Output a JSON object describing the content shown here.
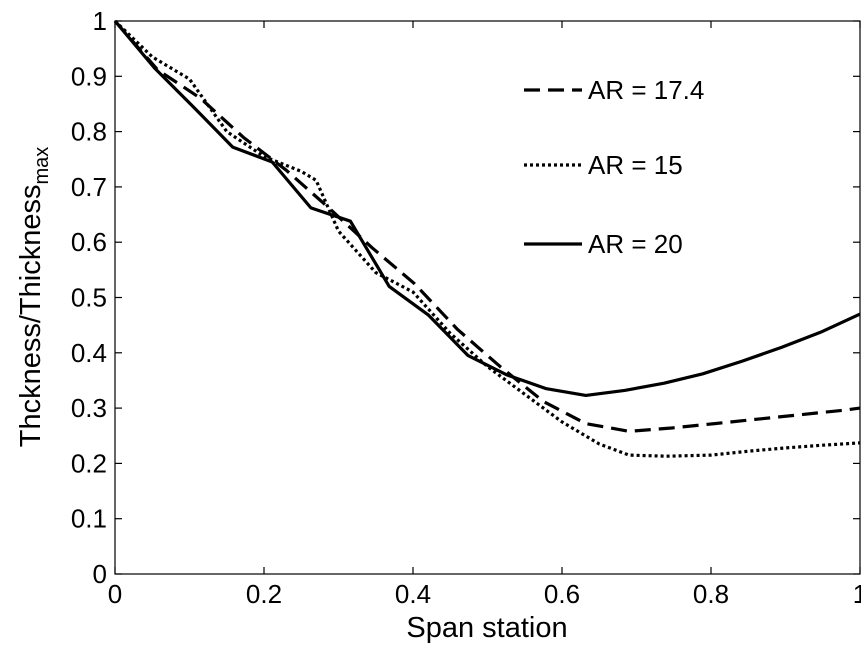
{
  "chart_data": {
    "type": "line",
    "title": "",
    "xlabel": "Span station",
    "ylabel": "Thckness/Thickness",
    "ylabel_subscript": "max",
    "xlim": [
      0,
      1
    ],
    "ylim": [
      0,
      1
    ],
    "xticks": [
      0,
      0.2,
      0.4,
      0.6,
      0.8,
      1
    ],
    "xtick_labels": [
      "0",
      "0.2",
      "0.4",
      "0.6",
      "0.8",
      "1"
    ],
    "yticks": [
      0,
      0.1,
      0.2,
      0.3,
      0.4,
      0.5,
      0.6,
      0.7,
      0.8,
      0.9,
      1
    ],
    "ytick_labels": [
      "0",
      "0.1",
      "0.2",
      "0.3",
      "0.4",
      "0.5",
      "0.6",
      "0.7",
      "0.8",
      "0.9",
      "1"
    ],
    "grid": false,
    "legend_position": "top-right",
    "series": [
      {
        "name": "AR = 17.4",
        "line_style": "dashed",
        "color": "#000000",
        "x": [
          0,
          0.057,
          0.115,
          0.172,
          0.23,
          0.287,
          0.345,
          0.402,
          0.46,
          0.517,
          0.575,
          0.632,
          0.69,
          0.747,
          0.805,
          0.862,
          0.92,
          0.977,
          1.0
        ],
        "y": [
          1.0,
          0.912,
          0.86,
          0.79,
          0.73,
          0.662,
          0.59,
          0.525,
          0.442,
          0.375,
          0.312,
          0.272,
          0.258,
          0.264,
          0.272,
          0.28,
          0.288,
          0.296,
          0.3
        ]
      },
      {
        "name": "AR = 15",
        "line_style": "dotted",
        "color": "#000000",
        "x": [
          0,
          0.05,
          0.1,
          0.15,
          0.2,
          0.25,
          0.27,
          0.3,
          0.35,
          0.4,
          0.45,
          0.5,
          0.55,
          0.6,
          0.65,
          0.69,
          0.74,
          0.8,
          0.85,
          0.9,
          0.95,
          1.0
        ],
        "y": [
          1.0,
          0.935,
          0.895,
          0.8,
          0.755,
          0.728,
          0.712,
          0.62,
          0.545,
          0.51,
          0.435,
          0.375,
          0.325,
          0.275,
          0.235,
          0.215,
          0.213,
          0.215,
          0.222,
          0.228,
          0.233,
          0.237
        ]
      },
      {
        "name": "AR = 20",
        "line_style": "solid",
        "color": "#000000",
        "x": [
          0,
          0.053,
          0.105,
          0.158,
          0.211,
          0.263,
          0.316,
          0.368,
          0.421,
          0.474,
          0.526,
          0.579,
          0.632,
          0.684,
          0.737,
          0.789,
          0.842,
          0.895,
          0.947,
          1.0
        ],
        "y": [
          1.0,
          0.915,
          0.845,
          0.772,
          0.745,
          0.662,
          0.638,
          0.52,
          0.468,
          0.395,
          0.36,
          0.335,
          0.323,
          0.332,
          0.345,
          0.362,
          0.385,
          0.41,
          0.437,
          0.47
        ]
      }
    ]
  }
}
